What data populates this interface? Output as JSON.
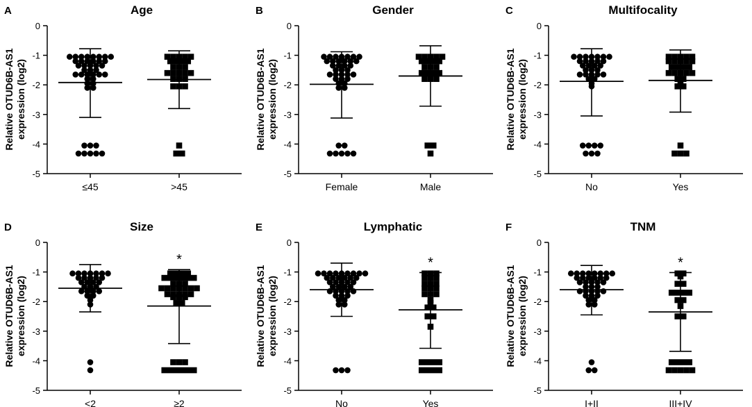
{
  "figure": {
    "ylabel_line1": "Relative OTUD6B-AS1",
    "ylabel_line2": "expression (log2)"
  },
  "chart_data": [
    {
      "letter": "A",
      "title": "Age",
      "type": "scatter",
      "ylabel": "Relative OTUD6B-AS1 expression (log2)",
      "ylim": [
        -5,
        0
      ],
      "yticks": [
        0,
        -1,
        -2,
        -3,
        -4,
        -5
      ],
      "groups": [
        {
          "label": "≤45",
          "marker": "circle",
          "mean": -1.92,
          "sd_upper": -0.78,
          "sd_lower": -3.1,
          "significant": false,
          "points": [
            -1.05,
            -1.05,
            -1.05,
            -1.05,
            -1.05,
            -1.05,
            -1.05,
            -1.05,
            -1.2,
            -1.2,
            -1.2,
            -1.2,
            -1.2,
            -1.2,
            -1.35,
            -1.35,
            -1.35,
            -1.35,
            -1.35,
            -1.5,
            -1.5,
            -1.5,
            -1.65,
            -1.65,
            -1.65,
            -1.65,
            -1.65,
            -1.65,
            -1.8,
            -1.8,
            -1.95,
            -1.95,
            -2.1,
            -2.1,
            -4.05,
            -4.05,
            -4.05,
            -4.32,
            -4.32,
            -4.32,
            -4.32,
            -4.32
          ]
        },
        {
          "label": ">45",
          "marker": "square",
          "mean": -1.82,
          "sd_upper": -0.85,
          "sd_lower": -2.8,
          "significant": false,
          "points": [
            -1.05,
            -1.05,
            -1.05,
            -1.05,
            -1.05,
            -1.2,
            -1.2,
            -1.2,
            -1.2,
            -1.4,
            -1.4,
            -1.4,
            -1.6,
            -1.6,
            -1.6,
            -1.6,
            -1.6,
            -1.8,
            -1.8,
            -1.8,
            -2.05,
            -2.05,
            -2.05,
            -4.05,
            -4.32,
            -4.32
          ]
        }
      ]
    },
    {
      "letter": "B",
      "title": "Gender",
      "type": "scatter",
      "ylabel": "Relative OTUD6B-AS1 expression (log2)",
      "ylim": [
        -5,
        0
      ],
      "yticks": [
        0,
        -1,
        -2,
        -3,
        -4,
        -5
      ],
      "groups": [
        {
          "label": "Female",
          "marker": "circle",
          "mean": -1.98,
          "sd_upper": -0.88,
          "sd_lower": -3.12,
          "significant": false,
          "points": [
            -1.05,
            -1.05,
            -1.05,
            -1.05,
            -1.05,
            -1.05,
            -1.05,
            -1.2,
            -1.2,
            -1.2,
            -1.2,
            -1.2,
            -1.2,
            -1.35,
            -1.35,
            -1.35,
            -1.35,
            -1.5,
            -1.5,
            -1.5,
            -1.65,
            -1.65,
            -1.65,
            -1.65,
            -1.65,
            -1.8,
            -1.8,
            -1.8,
            -1.95,
            -1.95,
            -2.1,
            -2.1,
            -4.05,
            -4.05,
            -4.32,
            -4.32,
            -4.32,
            -4.32,
            -4.32
          ]
        },
        {
          "label": "Male",
          "marker": "square",
          "mean": -1.7,
          "sd_upper": -0.68,
          "sd_lower": -2.72,
          "significant": false,
          "points": [
            -1.05,
            -1.05,
            -1.05,
            -1.05,
            -1.05,
            -1.2,
            -1.2,
            -1.2,
            -1.2,
            -1.4,
            -1.4,
            -1.4,
            -1.6,
            -1.6,
            -1.6,
            -1.6,
            -1.8,
            -1.8,
            -1.8,
            -4.05,
            -4.05,
            -4.32
          ]
        }
      ]
    },
    {
      "letter": "C",
      "title": "Multifocality",
      "type": "scatter",
      "ylabel": "Relative OTUD6B-AS1 expression (log2)",
      "ylim": [
        -5,
        0
      ],
      "yticks": [
        0,
        -1,
        -2,
        -3,
        -4,
        -5
      ],
      "groups": [
        {
          "label": "No",
          "marker": "circle",
          "mean": -1.88,
          "sd_upper": -0.78,
          "sd_lower": -3.05,
          "significant": false,
          "points": [
            -1.05,
            -1.05,
            -1.05,
            -1.05,
            -1.05,
            -1.05,
            -1.05,
            -1.2,
            -1.2,
            -1.2,
            -1.2,
            -1.2,
            -1.35,
            -1.35,
            -1.35,
            -1.35,
            -1.5,
            -1.5,
            -1.5,
            -1.65,
            -1.65,
            -1.65,
            -1.65,
            -1.65,
            -1.8,
            -1.8,
            -1.95,
            -2.05,
            -4.05,
            -4.05,
            -4.05,
            -4.05,
            -4.32,
            -4.32,
            -4.32
          ]
        },
        {
          "label": "Yes",
          "marker": "square",
          "mean": -1.85,
          "sd_upper": -0.82,
          "sd_lower": -2.92,
          "significant": false,
          "points": [
            -1.05,
            -1.05,
            -1.05,
            -1.05,
            -1.05,
            -1.2,
            -1.2,
            -1.2,
            -1.2,
            -1.2,
            -1.4,
            -1.4,
            -1.4,
            -1.4,
            -1.6,
            -1.6,
            -1.6,
            -1.6,
            -1.6,
            -1.8,
            -1.8,
            -1.95,
            -2.05,
            -2.05,
            -4.05,
            -4.32,
            -4.32,
            -4.32
          ]
        }
      ]
    },
    {
      "letter": "D",
      "title": "Size",
      "type": "scatter",
      "ylabel": "Relative OTUD6B-AS1 expression (log2)",
      "ylim": [
        -5,
        0
      ],
      "yticks": [
        0,
        -1,
        -2,
        -3,
        -4,
        -5
      ],
      "groups": [
        {
          "label": "<2",
          "marker": "circle",
          "mean": -1.55,
          "sd_upper": -0.75,
          "sd_lower": -2.35,
          "significant": false,
          "points": [
            -1.05,
            -1.05,
            -1.05,
            -1.05,
            -1.05,
            -1.05,
            -1.05,
            -1.2,
            -1.2,
            -1.2,
            -1.2,
            -1.2,
            -1.35,
            -1.35,
            -1.35,
            -1.35,
            -1.5,
            -1.5,
            -1.5,
            -1.65,
            -1.65,
            -1.65,
            -1.65,
            -1.8,
            -1.8,
            -1.95,
            -2.1,
            -4.05,
            -4.32
          ]
        },
        {
          "label": "≥2",
          "marker": "square",
          "mean": -2.15,
          "sd_upper": -0.92,
          "sd_lower": -3.42,
          "significant": true,
          "points": [
            -1.05,
            -1.05,
            -1.05,
            -1.05,
            -1.2,
            -1.2,
            -1.2,
            -1.2,
            -1.2,
            -1.2,
            -1.4,
            -1.4,
            -1.4,
            -1.55,
            -1.55,
            -1.55,
            -1.55,
            -1.55,
            -1.55,
            -1.55,
            -1.75,
            -1.75,
            -1.75,
            -1.75,
            -1.75,
            -1.85,
            -1.85,
            -1.85,
            -2.05,
            -2.05,
            -4.05,
            -4.05,
            -4.05,
            -4.32,
            -4.32,
            -4.32,
            -4.32,
            -4.32,
            -4.32
          ]
        }
      ]
    },
    {
      "letter": "E",
      "title": "Lymphatic",
      "type": "scatter",
      "ylabel": "Relative OTUD6B-AS1 expression (log2)",
      "ylim": [
        -5,
        0
      ],
      "yticks": [
        0,
        -1,
        -2,
        -3,
        -4,
        -5
      ],
      "groups": [
        {
          "label": "No",
          "marker": "circle",
          "mean": -1.6,
          "sd_upper": -0.7,
          "sd_lower": -2.5,
          "significant": false,
          "points": [
            -1.05,
            -1.05,
            -1.05,
            -1.05,
            -1.05,
            -1.05,
            -1.05,
            -1.05,
            -1.05,
            -1.2,
            -1.2,
            -1.2,
            -1.2,
            -1.2,
            -1.2,
            -1.35,
            -1.35,
            -1.35,
            -1.35,
            -1.35,
            -1.5,
            -1.5,
            -1.5,
            -1.5,
            -1.65,
            -1.65,
            -1.65,
            -1.65,
            -1.65,
            -1.8,
            -1.8,
            -1.8,
            -1.95,
            -1.95,
            -2.1,
            -2.1,
            -4.32,
            -4.32,
            -4.32
          ]
        },
        {
          "label": "Yes",
          "marker": "square",
          "mean": -2.28,
          "sd_upper": -1.02,
          "sd_lower": -3.58,
          "significant": true,
          "points": [
            -1.05,
            -1.05,
            -1.05,
            -1.2,
            -1.2,
            -1.2,
            -1.4,
            -1.4,
            -1.4,
            -1.55,
            -1.55,
            -1.55,
            -1.75,
            -1.75,
            -1.75,
            -1.95,
            -2.05,
            -2.2,
            -2.2,
            -2.5,
            -2.5,
            -2.85,
            -4.05,
            -4.05,
            -4.05,
            -4.05,
            -4.32,
            -4.32,
            -4.32,
            -4.32
          ]
        }
      ]
    },
    {
      "letter": "F",
      "title": "TNM",
      "type": "scatter",
      "ylabel": "Relative OTUD6B-AS1 expression (log2)",
      "ylim": [
        -5,
        0
      ],
      "yticks": [
        0,
        -1,
        -2,
        -3,
        -4,
        -5
      ],
      "groups": [
        {
          "label": "I+II",
          "marker": "circle",
          "mean": -1.6,
          "sd_upper": -0.78,
          "sd_lower": -2.45,
          "significant": false,
          "points": [
            -1.05,
            -1.05,
            -1.05,
            -1.05,
            -1.05,
            -1.05,
            -1.05,
            -1.05,
            -1.2,
            -1.2,
            -1.2,
            -1.2,
            -1.2,
            -1.2,
            -1.35,
            -1.35,
            -1.35,
            -1.35,
            -1.35,
            -1.5,
            -1.5,
            -1.5,
            -1.65,
            -1.65,
            -1.65,
            -1.65,
            -1.65,
            -1.8,
            -1.8,
            -1.8,
            -1.95,
            -1.95,
            -2.1,
            -2.1,
            -4.05,
            -4.32,
            -4.32
          ]
        },
        {
          "label": "III+IV",
          "marker": "square",
          "mean": -2.35,
          "sd_upper": -1.02,
          "sd_lower": -3.68,
          "significant": true,
          "points": [
            -1.05,
            -1.05,
            -1.15,
            -1.4,
            -1.4,
            -1.7,
            -1.7,
            -1.7,
            -1.7,
            -1.95,
            -1.95,
            -2.15,
            -2.5,
            -2.5,
            -4.05,
            -4.05,
            -4.05,
            -4.05,
            -4.32,
            -4.32,
            -4.32,
            -4.32,
            -4.32
          ]
        }
      ]
    }
  ]
}
